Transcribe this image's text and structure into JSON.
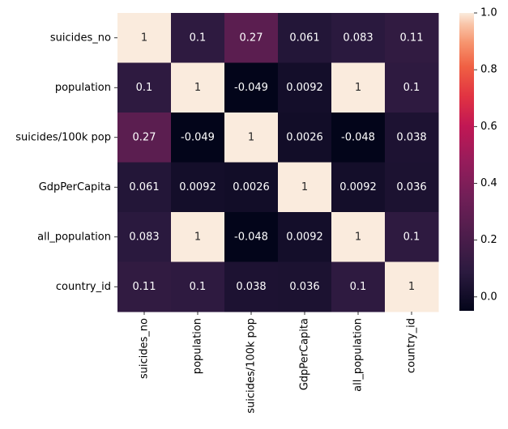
{
  "chart_data": {
    "type": "heatmap",
    "title": "",
    "xlabel": "",
    "ylabel": "",
    "rows": [
      "suicides_no",
      "population",
      "suicides/100k pop",
      "GdpPerCapita",
      "all_population",
      "country_id"
    ],
    "columns": [
      "suicides_no",
      "population",
      "suicides/100k pop",
      "GdpPerCapita",
      "all_population",
      "country_id"
    ],
    "values": [
      [
        1,
        0.1,
        0.27,
        0.061,
        0.083,
        0.11
      ],
      [
        0.1,
        1,
        -0.049,
        0.0092,
        1,
        0.1
      ],
      [
        0.27,
        -0.049,
        1,
        0.0026,
        -0.048,
        0.038
      ],
      [
        0.061,
        0.0092,
        0.0026,
        1,
        0.0092,
        0.036
      ],
      [
        0.083,
        1,
        -0.048,
        0.0092,
        1,
        0.1
      ],
      [
        0.11,
        0.1,
        0.038,
        0.036,
        0.1,
        1
      ]
    ],
    "annotations": [
      [
        "1",
        "0.1",
        "0.27",
        "0.061",
        "0.083",
        "0.11"
      ],
      [
        "0.1",
        "1",
        "-0.049",
        "0.0092",
        "1",
        "0.1"
      ],
      [
        "0.27",
        "-0.049",
        "1",
        "0.0026",
        "-0.048",
        "0.038"
      ],
      [
        "0.061",
        "0.0092",
        "0.0026",
        "1",
        "0.0092",
        "0.036"
      ],
      [
        "0.083",
        "1",
        "-0.048",
        "0.0092",
        "1",
        "0.1"
      ],
      [
        "0.11",
        "0.1",
        "0.038",
        "0.036",
        "0.1",
        "1"
      ]
    ],
    "colorbar": {
      "range": [
        -0.049,
        1.0
      ],
      "ticks": [
        0.0,
        0.2,
        0.4,
        0.6,
        0.8,
        1.0
      ],
      "tick_labels": [
        "0.0",
        "0.2",
        "0.4",
        "0.6",
        "0.8",
        "1.0"
      ],
      "colormap": "rocket"
    }
  }
}
